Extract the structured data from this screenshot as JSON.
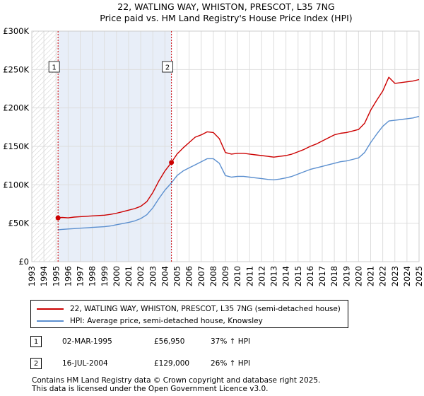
{
  "chart_data": {
    "type": "line",
    "title": "22, WATLING WAY, WHISTON, PRESCOT, L35 7NG",
    "subtitle": "Price paid vs. HM Land Registry's House Price Index (HPI)",
    "xlabel": "",
    "ylabel": "",
    "xlim": [
      1993,
      2025
    ],
    "ylim": [
      0,
      300000
    ],
    "yticks": [
      0,
      50000,
      100000,
      150000,
      200000,
      250000,
      300000
    ],
    "ytick_labels": [
      "£0",
      "£50K",
      "£100K",
      "£150K",
      "£200K",
      "£250K",
      "£300K"
    ],
    "xticks": [
      1993,
      1994,
      1995,
      1996,
      1997,
      1998,
      1999,
      2000,
      2001,
      2002,
      2003,
      2004,
      2005,
      2006,
      2007,
      2008,
      2009,
      2010,
      2011,
      2012,
      2013,
      2014,
      2015,
      2016,
      2017,
      2018,
      2019,
      2020,
      2021,
      2022,
      2023,
      2024,
      2025
    ],
    "grid": true,
    "series": [
      {
        "name": "22, WATLING WAY, WHISTON, PRESCOT, L35 7NG (semi-detached house)",
        "color": "#cc0000",
        "x": [
          1995.17,
          1995.5,
          1996,
          1996.5,
          1997,
          1997.5,
          1998,
          1998.5,
          1999,
          1999.5,
          2000,
          2000.5,
          2001,
          2001.5,
          2002,
          2002.5,
          2003,
          2003.5,
          2004,
          2004.54,
          2005,
          2005.5,
          2006,
          2006.5,
          2007,
          2007.5,
          2008,
          2008.5,
          2009,
          2009.5,
          2010,
          2010.5,
          2011,
          2011.5,
          2012,
          2012.5,
          2013,
          2013.5,
          2014,
          2014.5,
          2015,
          2015.5,
          2016,
          2016.5,
          2017,
          2017.5,
          2018,
          2018.5,
          2019,
          2019.5,
          2020,
          2020.5,
          2021,
          2021.5,
          2022,
          2022.5,
          2023,
          2023.5,
          2024,
          2024.5,
          2025
        ],
        "values": [
          56950,
          57500,
          57000,
          58000,
          58500,
          59000,
          59500,
          60000,
          60500,
          61500,
          63000,
          65000,
          67000,
          69000,
          72000,
          78000,
          90000,
          105000,
          118000,
          129000,
          140000,
          148000,
          155000,
          162000,
          165000,
          169000,
          168000,
          160000,
          142000,
          140000,
          141000,
          141000,
          140000,
          139000,
          138000,
          137000,
          136000,
          137000,
          138000,
          140000,
          143000,
          146000,
          150000,
          153000,
          157000,
          161000,
          165000,
          167000,
          168000,
          170000,
          172000,
          180000,
          197000,
          210000,
          222000,
          240000,
          232000,
          233000,
          234000,
          235000,
          237000
        ]
      },
      {
        "name": "HPI: Average price, semi-detached house, Knowsley",
        "color": "#5b8fcf",
        "x": [
          1995.17,
          1995.5,
          1996,
          1996.5,
          1997,
          1997.5,
          1998,
          1998.5,
          1999,
          1999.5,
          2000,
          2000.5,
          2001,
          2001.5,
          2002,
          2002.5,
          2003,
          2003.5,
          2004,
          2004.54,
          2005,
          2005.5,
          2006,
          2006.5,
          2007,
          2007.5,
          2008,
          2008.5,
          2009,
          2009.5,
          2010,
          2010.5,
          2011,
          2011.5,
          2012,
          2012.5,
          2013,
          2013.5,
          2014,
          2014.5,
          2015,
          2015.5,
          2016,
          2016.5,
          2017,
          2017.5,
          2018,
          2018.5,
          2019,
          2019.5,
          2020,
          2020.5,
          2021,
          2021.5,
          2022,
          2022.5,
          2023,
          2023.5,
          2024,
          2024.5,
          2025
        ],
        "values": [
          41500,
          42000,
          42500,
          43000,
          43500,
          44000,
          44500,
          45000,
          45500,
          46500,
          48000,
          49500,
          51000,
          53000,
          56000,
          61000,
          70000,
          82000,
          93000,
          102500,
          112000,
          118000,
          122000,
          126000,
          130000,
          134000,
          134000,
          128000,
          112000,
          110000,
          111000,
          111000,
          110000,
          109000,
          108000,
          107000,
          106500,
          107500,
          109000,
          111000,
          114000,
          117000,
          120000,
          122000,
          124000,
          126000,
          128000,
          130000,
          131000,
          133000,
          135000,
          142000,
          155000,
          166000,
          176000,
          183000,
          184000,
          185000,
          186000,
          187000,
          189000
        ]
      }
    ],
    "shaded_spans": [
      {
        "from": 1993,
        "to": 1995.17,
        "style": "hatch"
      },
      {
        "from": 1995.17,
        "to": 2004.54,
        "style": "fill"
      }
    ],
    "annotations": [
      {
        "label": "1",
        "x": 1995.17,
        "y": 56950
      },
      {
        "label": "2",
        "x": 2004.54,
        "y": 129000
      }
    ]
  },
  "legend": {
    "items": [
      {
        "label": "22, WATLING WAY, WHISTON, PRESCOT, L35 7NG (semi-detached house)",
        "color": "#cc0000"
      },
      {
        "label": "HPI: Average price, semi-detached house, Knowsley",
        "color": "#5b8fcf"
      }
    ]
  },
  "sales": [
    {
      "num": "1",
      "date": "02-MAR-1995",
      "price": "£56,950",
      "hpi": "37% ↑ HPI"
    },
    {
      "num": "2",
      "date": "16-JUL-2004",
      "price": "£129,000",
      "hpi": "26% ↑ HPI"
    }
  ],
  "footer": {
    "line1": "Contains HM Land Registry data © Crown copyright and database right 2025.",
    "line2": "This data is licensed under the Open Government Licence v3.0."
  }
}
